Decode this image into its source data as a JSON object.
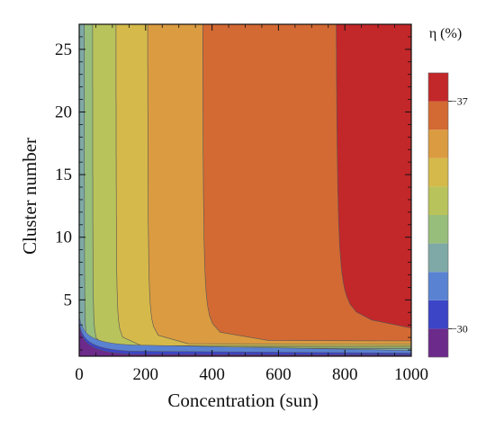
{
  "chart_data": {
    "type": "heatmap",
    "title": "",
    "xlabel": "Concentration (sun)",
    "ylabel": "Cluster number",
    "xlim": [
      0,
      1000
    ],
    "ylim": [
      0.5,
      27
    ],
    "x_ticks": [
      0,
      200,
      400,
      600,
      800,
      1000
    ],
    "y_ticks": [
      5,
      10,
      15,
      20,
      25
    ],
    "colorbar": {
      "title": "η (%)",
      "tick_labels": [
        {
          "label": "−37",
          "value": 37
        },
        {
          "label": "−30",
          "value": 30
        }
      ],
      "levels": [
        {
          "range": [
            29.3,
            30.0
          ],
          "color": "#6c2a8a"
        },
        {
          "range": [
            30.0,
            30.8
          ],
          "color": "#3c45c6"
        },
        {
          "range": [
            30.8,
            31.6
          ],
          "color": "#5a82d2"
        },
        {
          "range": [
            31.6,
            32.4
          ],
          "color": "#7fa9a6"
        },
        {
          "range": [
            32.4,
            33.2
          ],
          "color": "#97be7b"
        },
        {
          "range": [
            33.2,
            34.0
          ],
          "color": "#b9c35b"
        },
        {
          "range": [
            34.0,
            34.8
          ],
          "color": "#d5b94a"
        },
        {
          "range": [
            34.8,
            35.6
          ],
          "color": "#db9b40"
        },
        {
          "range": [
            35.6,
            37.0
          ],
          "color": "#d36a33"
        },
        {
          "range": [
            37.0,
            38.0
          ],
          "color": "#c2272a"
        }
      ]
    },
    "contour_boundaries": [
      {
        "label": "color band 1 / 2",
        "x_asymptote": 15,
        "y_asymptote": 0.9
      },
      {
        "label": "color band 2 / 3",
        "x_asymptote": 40,
        "y_asymptote": 1.0
      },
      {
        "label": "color band 3 / 4",
        "x_asymptote": 110,
        "y_asymptote": 1.1
      },
      {
        "label": "color band 4 / 5",
        "x_asymptote": 205,
        "y_asymptote": 1.25
      },
      {
        "label": "color band 5 / 6",
        "x_asymptote": 370,
        "y_asymptote": 1.5
      },
      {
        "label": "color band 6 / 7",
        "x_asymptote": 770,
        "y_asymptote": 2.5
      }
    ],
    "grid": false,
    "legend": "colorbar right"
  }
}
